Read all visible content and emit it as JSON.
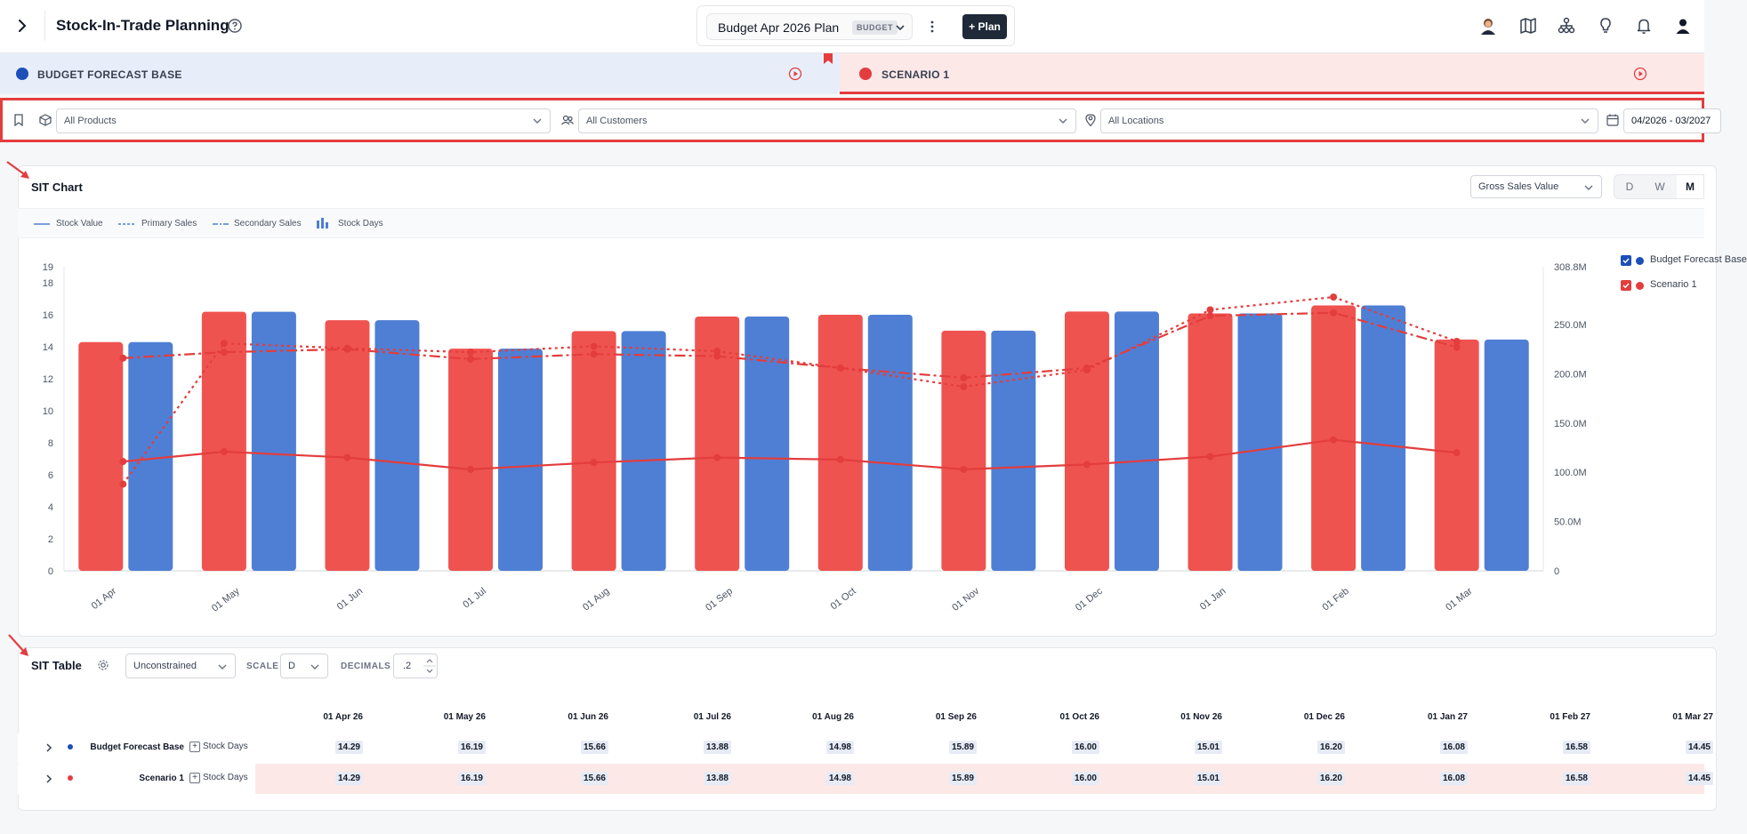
{
  "header": {
    "title": "Stock-In-Trade Planning",
    "plan_name": "Budget Apr 2026 Plan",
    "plan_badge": "BUDGET",
    "add_plan_label": "+ Plan"
  },
  "scenarios": [
    {
      "label": "BUDGET FORECAST BASE",
      "color": "#1d4fb8"
    },
    {
      "label": "SCENARIO 1",
      "color": "#e33d3d"
    }
  ],
  "filters": {
    "products": "All Products",
    "customers": "All Customers",
    "locations": "All Locations",
    "date_range": "04/2026 - 03/2027"
  },
  "sit_chart": {
    "title": "SIT Chart",
    "measure_select": "Gross Sales Value",
    "granularity": [
      "D",
      "W",
      "M"
    ],
    "granularity_active": "M",
    "legend": [
      "Stock Value",
      "Primary Sales",
      "Secondary Sales",
      "Stock Days"
    ],
    "scenario_legend": [
      {
        "label": "Budget Forecast Base",
        "color": "#1d4fb8"
      },
      {
        "label": "Scenario 1",
        "color": "#e33d3d"
      }
    ]
  },
  "chart_data": {
    "type": "bar",
    "categories": [
      "01 Apr",
      "01 May",
      "01 Jun",
      "01 Jul",
      "01 Aug",
      "01 Sep",
      "01 Oct",
      "01 Nov",
      "01 Dec",
      "01 Jan",
      "01 Feb",
      "01 Mar"
    ],
    "y_left_ticks": [
      "0",
      "2",
      "4",
      "6",
      "8",
      "10",
      "12",
      "14",
      "16",
      "18",
      "19"
    ],
    "y_right_ticks": [
      "0",
      "50.0M",
      "100.0M",
      "150.0M",
      "200.0M",
      "250.0M",
      "308.8M"
    ],
    "ylim_left": [
      0,
      19
    ],
    "ylim_right": [
      0,
      308.8
    ],
    "series": [
      {
        "name": "Stock Days",
        "scenario": "Scenario 1",
        "color": "#ef5350",
        "values": [
          14.29,
          16.19,
          15.66,
          13.88,
          14.98,
          15.89,
          16.0,
          15.01,
          16.2,
          16.08,
          16.58,
          14.45
        ]
      },
      {
        "name": "Stock Days",
        "scenario": "Budget Forecast Base",
        "color": "#4f7fd4",
        "values": [
          14.29,
          16.19,
          15.66,
          13.88,
          14.98,
          15.89,
          16.0,
          15.01,
          16.2,
          16.08,
          16.58,
          14.45
        ]
      },
      {
        "name": "Stock Value",
        "scenario": "Scenario 1",
        "color": "#e33d3d",
        "style": "solid",
        "values": [
          111,
          121,
          115,
          103,
          110,
          115,
          113,
          103,
          108,
          116,
          133,
          120
        ]
      },
      {
        "name": "Primary Sales",
        "scenario": "Scenario 1",
        "color": "#e33d3d",
        "style": "dotted",
        "values": [
          88,
          231,
          226,
          222,
          228,
          223,
          206,
          187,
          204,
          265,
          278,
          233
        ]
      },
      {
        "name": "Secondary Sales",
        "scenario": "Scenario 1",
        "color": "#e33d3d",
        "style": "dashdot",
        "values": [
          216,
          222,
          225,
          215,
          220,
          218,
          206,
          196,
          206,
          259,
          262,
          227
        ]
      }
    ]
  },
  "sit_table": {
    "title": "SIT Table",
    "constraint_select": "Unconstrained",
    "scale_label": "SCALE",
    "scale_value": "D",
    "decimals_label": "DECIMALS",
    "decimals_value": ".2",
    "columns": [
      "01 Apr 26",
      "01 May 26",
      "01 Jun 26",
      "01 Jul 26",
      "01 Aug 26",
      "01 Sep 26",
      "01 Oct 26",
      "01 Nov 26",
      "01 Dec 26",
      "01 Jan 27",
      "01 Feb 27",
      "01 Mar 27"
    ],
    "rows": [
      {
        "name": "Budget Forecast Base",
        "metric": "Stock Days",
        "values": [
          "14.29",
          "16.19",
          "15.66",
          "13.88",
          "14.98",
          "15.89",
          "16.00",
          "15.01",
          "16.20",
          "16.08",
          "16.58",
          "14.45"
        ]
      },
      {
        "name": "Scenario 1",
        "metric": "Stock Days",
        "values": [
          "14.29",
          "16.19",
          "15.66",
          "13.88",
          "14.98",
          "15.89",
          "16.00",
          "15.01",
          "16.20",
          "16.08",
          "16.58",
          "14.45"
        ]
      }
    ]
  }
}
